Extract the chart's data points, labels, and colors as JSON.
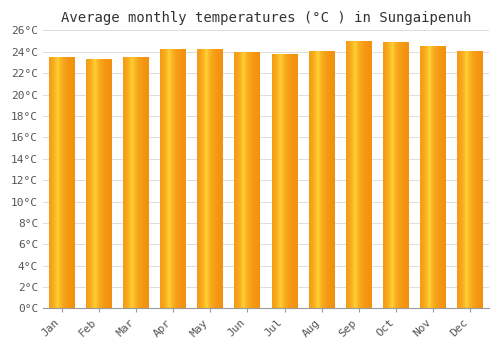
{
  "title": "Average monthly temperatures (°C ) in Sungaipenuh",
  "months": [
    "Jan",
    "Feb",
    "Mar",
    "Apr",
    "May",
    "Jun",
    "Jul",
    "Aug",
    "Sep",
    "Oct",
    "Nov",
    "Dec"
  ],
  "values": [
    23.5,
    23.3,
    23.5,
    24.3,
    24.3,
    24.0,
    23.8,
    24.1,
    25.0,
    24.9,
    24.5,
    24.1
  ],
  "ylim": [
    0,
    26
  ],
  "yticks": [
    0,
    2,
    4,
    6,
    8,
    10,
    12,
    14,
    16,
    18,
    20,
    22,
    24,
    26
  ],
  "background_color": "#FFFFFF",
  "grid_color": "#DDDDDD",
  "title_fontsize": 10,
  "tick_fontsize": 8,
  "font_family": "monospace"
}
